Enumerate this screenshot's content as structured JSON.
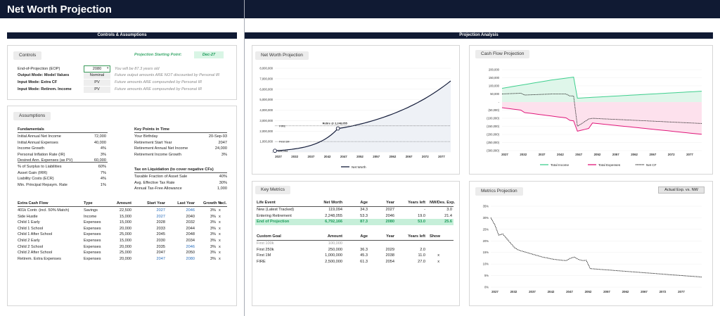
{
  "app_title": "Net Worth Projection",
  "sections": {
    "left": "Controls & Assumptions",
    "right": "Projection Analysis"
  },
  "controls": {
    "pill": "Controls",
    "start_label": "Projection Starting Point:",
    "start_value": "Dec-27",
    "rows": [
      {
        "label": "End-of-Projection (EOP)",
        "value": "2080",
        "note": "You will be 87.3 years old"
      },
      {
        "label": "Output Mode: Model Values",
        "value": "Nominal",
        "note": "Future output amounts ARE NOT discounted by Personal IR"
      },
      {
        "label": "Input Mode: Extra CF",
        "value": "PV",
        "note": "Future amounts ARE compounded by Personal IR"
      },
      {
        "label": "Input Mode: Retirem. Income",
        "value": "PV",
        "note": "Future amounts ARE compounded by Personal IR"
      }
    ]
  },
  "assumptions": {
    "pill": "Assumptions",
    "fundamentals": {
      "header": "Fundamentals",
      "rows": [
        {
          "label": "Initial Annual Net Income",
          "value": "72,000"
        },
        {
          "label": "Initial Annual Expenses",
          "value": "40,000"
        },
        {
          "label": "Income Growth",
          "value": "4%"
        },
        {
          "label": "Personal Inflation Rate (IR)",
          "value": "3%"
        },
        {
          "label": "Desired Ann. Expenses (as PV)",
          "value": "60,000"
        },
        {
          "label": "% of Surplus to Liabilities",
          "value": "60%"
        },
        {
          "label": "Asset Gain (IRR)",
          "value": "7%"
        },
        {
          "label": "Liability Costs (ECR)",
          "value": "4%"
        },
        {
          "label": "Min. Principal Repaym. Rate",
          "value": "1%"
        }
      ]
    },
    "key_points": {
      "header": "Key Points in Time",
      "rows": [
        {
          "label": "Your Birthday",
          "value": "20-Sep-93"
        },
        {
          "label": "Retirement Start Year",
          "value": "2047"
        },
        {
          "label": "Retirement Annual Net Income",
          "value": "24,000"
        },
        {
          "label": "Retirement Income Growth",
          "value": "3%"
        }
      ]
    },
    "tax": {
      "header": "Tax on Liquidation (to cover negative CFs)",
      "rows": [
        {
          "label": "Taxable Fraction of Asset Sale",
          "value": "40%"
        },
        {
          "label": "Avg. Effective Tax Rate",
          "value": "30%"
        },
        {
          "label": "Annual Tax-Free Allowance",
          "value": "1,000"
        }
      ]
    },
    "extra_cf": {
      "headers": [
        "Extra Cash Flow",
        "Type",
        "Amount",
        "Start Year",
        "Last Year",
        "Growth %",
        "Incl."
      ],
      "rows": [
        [
          "401k Contr. (incl. 50% Match)",
          "Savings",
          "22,500",
          "2027",
          "2046",
          "3%",
          "x"
        ],
        [
          "Side Hustle",
          "Income",
          "15,000",
          "2027",
          "2040",
          "3%",
          "x"
        ],
        [
          "Child 1 Early",
          "Expenses",
          "15,000",
          "2028",
          "2032",
          "3%",
          "x"
        ],
        [
          "Child 1 School",
          "Expenses",
          "20,000",
          "2033",
          "2044",
          "3%",
          "x"
        ],
        [
          "Child 1 After School",
          "Expenses",
          "25,000",
          "2045",
          "2048",
          "3%",
          "x"
        ],
        [
          "Child 2 Early",
          "Expenses",
          "15,000",
          "2030",
          "2034",
          "3%",
          "x"
        ],
        [
          "Child 2 School",
          "Expenses",
          "20,000",
          "2035",
          "2046",
          "3%",
          "x"
        ],
        [
          "Child 2 After School",
          "Expenses",
          "25,000",
          "2047",
          "2050",
          "3%",
          "x"
        ],
        [
          "Retirem. Extra Expenses",
          "Expenses",
          "20,000",
          "2047",
          "2080",
          "3%",
          "x"
        ]
      ]
    }
  },
  "net_worth_projection": {
    "pill": "Net Worth Projection",
    "y_ticks": [
      "-",
      "1,000,000",
      "2,000,000",
      "3,000,000",
      "4,000,000",
      "5,000,000",
      "6,000,000",
      "7,000,000",
      "8,000,000"
    ],
    "x_ticks": [
      "2027",
      "2032",
      "2037",
      "2042",
      "2047",
      "2052",
      "2057",
      "2062",
      "2067",
      "2072",
      "2077"
    ],
    "annotations": {
      "fire": "FIRE",
      "first1m": "First 1M",
      "retire": "Retire @ 2,248,055",
      "start": "119,094"
    },
    "legend": "Net Worth"
  },
  "cash_flow_projection": {
    "pill": "Cash Flow Projection",
    "y_ticks": [
      "200,000",
      "150,000",
      "100,000",
      "50,000",
      "-",
      "(50,000)",
      "(100,000)",
      "(150,000)",
      "(200,000)",
      "(250,000)",
      "(300,000)"
    ],
    "x_ticks": [
      "2027",
      "2032",
      "2037",
      "2042",
      "2047",
      "2052",
      "2057",
      "2062",
      "2067",
      "2072",
      "2077"
    ],
    "legend": [
      "Total Income",
      "Total Expenses",
      "Net CF"
    ]
  },
  "key_metrics": {
    "pill": "Key Metrics",
    "life_headers": [
      "Life Event",
      "Net Worth",
      "Age",
      "Year",
      "Years left",
      "NW/Des. Exp."
    ],
    "life_rows": [
      [
        "New (Latest Tracked)",
        "119,094",
        "34.3",
        "2027",
        "-",
        "3.0"
      ],
      [
        "Entering Retirement",
        "2,248,055",
        "53.3",
        "2046",
        "19.0",
        "21.4"
      ],
      [
        "End of Projection",
        "6,792,166",
        "87.3",
        "2080",
        "53.0",
        "25.6"
      ]
    ],
    "goal_headers": [
      "Custom Goal",
      "Amount",
      "Age",
      "Year",
      "Years left",
      "Show"
    ],
    "goal_rows": [
      [
        "First 100k",
        "100,000",
        "",
        "",
        "",
        ""
      ],
      [
        "First 250k",
        "250,000",
        "36.3",
        "2029",
        "2.0",
        ""
      ],
      [
        "First 1M",
        "1,000,000",
        "45.3",
        "2038",
        "11.0",
        "x"
      ],
      [
        "FIRE",
        "2,500,000",
        "61.3",
        "2054",
        "27.0",
        "x"
      ]
    ]
  },
  "metrics_projection": {
    "pill": "Metrics Projection",
    "dropdown": "Actual Exp. vs. NW",
    "y_ticks": [
      "35%",
      "30%",
      "25%",
      "20%",
      "15%",
      "10%",
      "5%",
      "0%"
    ],
    "x_ticks": [
      "2027",
      "2032",
      "2037",
      "2042",
      "2047",
      "2052",
      "2057",
      "2062",
      "2067",
      "2072",
      "2077"
    ]
  },
  "colors": {
    "navy": "#101a33",
    "income": "#3fcf8e",
    "expenses": "#e0177a",
    "net": "#111111",
    "highlight": "#c6efd9"
  }
}
